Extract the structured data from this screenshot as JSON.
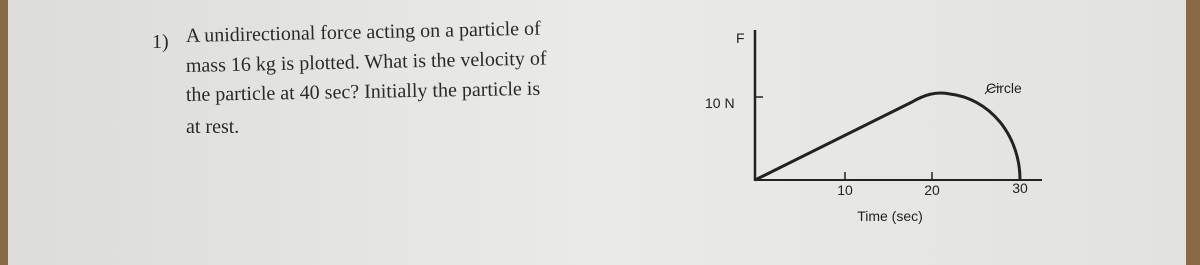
{
  "question": {
    "number": "1)",
    "lines": [
      "A unidirectional force acting on a particle of",
      "mass 16 kg is plotted. What is the velocity of",
      "the particle at 40 sec? Initially the particle is",
      "at rest."
    ]
  },
  "diagram": {
    "y_axis_label": "F",
    "y_tick_label": "10 N",
    "curve_label": "Circle",
    "x_tick_labels": [
      "10",
      "20",
      "30"
    ],
    "x_axis_label": "Time (sec)"
  }
}
